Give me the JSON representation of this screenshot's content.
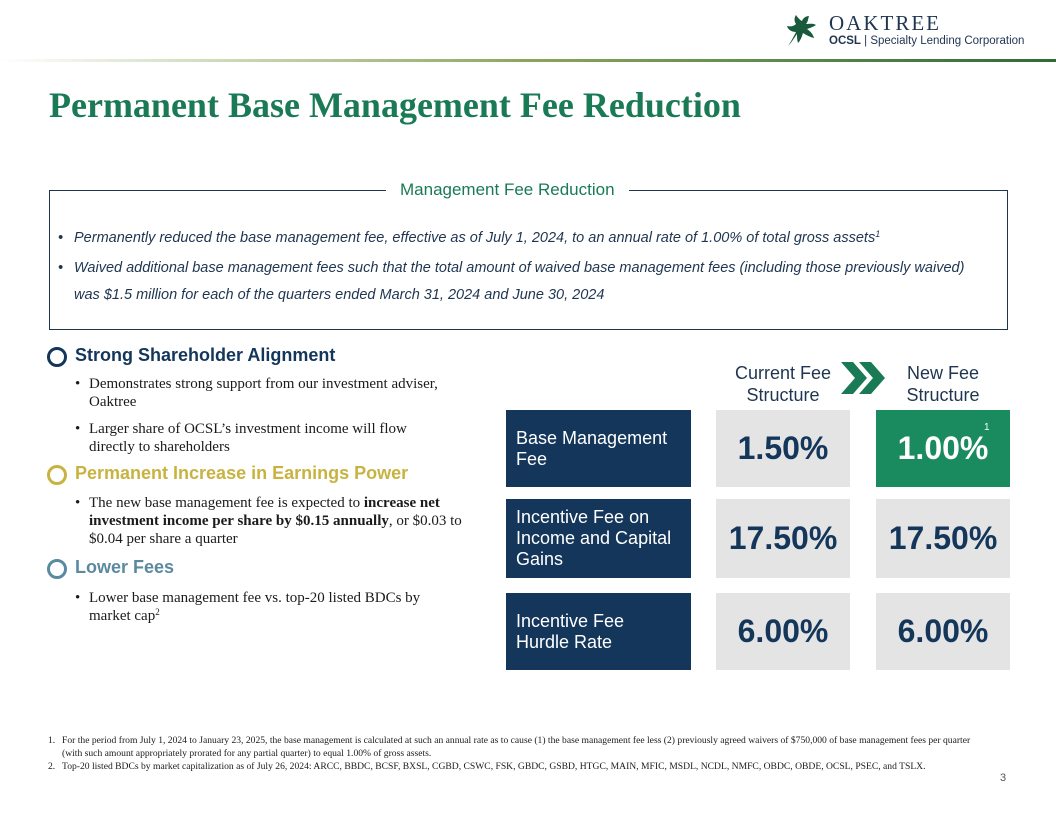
{
  "logo": {
    "name": "OAKTREE",
    "ticker": "OCSL",
    "subtitle": "| Specialty Lending Corporation"
  },
  "colors": {
    "title_green": "#1a7a55",
    "navy": "#13365a",
    "gold": "#c9b340",
    "teal": "#5b8aa0",
    "highlight_green": "#1a8a5f"
  },
  "title": "Permanent Base Management Fee Reduction",
  "management_box": {
    "title": "Management Fee Reduction",
    "bullets": [
      {
        "text": "Permanently reduced the base management fee, effective as of July 1, 2024, to an annual rate of 1.00% of total gross assets",
        "footnote": "1"
      },
      {
        "text": "Waived additional base management fees such that the total amount of waived base management fees (including those previously waived) was $1.5 million for each of the quarters ended March 31, 2024 and June 30, 2024"
      }
    ]
  },
  "sections": [
    {
      "heading": "Strong Shareholder Alignment",
      "bullets": [
        "Demonstrates strong support from our investment adviser, Oaktree",
        "Larger share of OCSL’s investment income will flow directly to shareholders"
      ]
    },
    {
      "heading": "Permanent Increase in Earnings Power",
      "bullet_pre": "The new base management fee is expected to ",
      "bullet_bold": "increase net investment income per share by $0.15 annually",
      "bullet_post": ", or $0.03 to $0.04 per share a quarter"
    },
    {
      "heading": "Lower Fees",
      "bullet": "Lower base management fee vs. top-20 listed BDCs by market cap",
      "bullet_footnote": "2"
    }
  ],
  "fee_table": {
    "col_current": "Current Fee Structure",
    "col_new": "New Fee Structure",
    "arrow_icon": "double-chevron-right",
    "rows": [
      {
        "label": "Base Management Fee",
        "current": "1.50%",
        "new": "1.00%",
        "new_footnote": "1"
      },
      {
        "label": "Incentive Fee on Income and Capital Gains",
        "current": "17.50%",
        "new": "17.50%"
      },
      {
        "label": "Incentive Fee Hurdle Rate",
        "current": "6.00%",
        "new": "6.00%"
      }
    ]
  },
  "footnotes": [
    {
      "num": "1.",
      "text": "For the period from July 1, 2024 to January 23, 2025, the base management is calculated at such an annual rate as to cause (1) the base management fee less (2) previously agreed waivers of $750,000 of base management fees per quarter (with such amount appropriately prorated for any partial quarter) to equal 1.00% of gross assets."
    },
    {
      "num": "2.",
      "text": "Top-20 listed BDCs by market capitalization as of July 26, 2024: ARCC, BBDC, BCSF, BXSL, CGBD, CSWC, FSK, GBDC, GSBD, HTGC, MAIN, MFIC, MSDL, NCDL, NMFC, OBDC, OBDE, OCSL, PSEC, and TSLX."
    }
  ],
  "page_number": "3"
}
